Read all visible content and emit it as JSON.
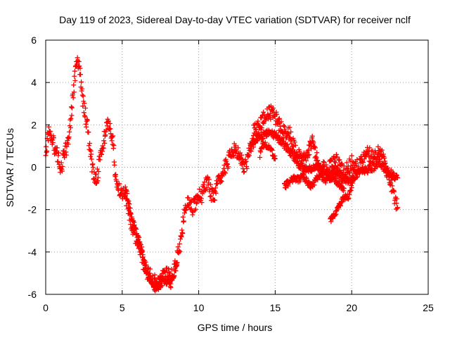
{
  "chart_data": {
    "type": "scatter",
    "title": "Day 119 of 2023, Sidereal Day-to-day VTEC variation (SDTVAR) for receiver nclf",
    "xlabel": "GPS time / hours",
    "ylabel": "SDTVAR / TECUs",
    "xlim": [
      0,
      25
    ],
    "ylim": [
      -6,
      6
    ],
    "xticks": [
      0,
      5,
      10,
      15,
      20,
      25
    ],
    "yticks": [
      -6,
      -4,
      -2,
      0,
      2,
      4,
      6
    ],
    "grid": true,
    "marker": "+",
    "series": [
      {
        "name": "SDTVAR",
        "color": "#ff0000",
        "tracks": [
          {
            "spread": 0.35,
            "points": [
              [
                0.0,
                0.8
              ],
              [
                0.2,
                1.6
              ],
              [
                0.4,
                1.5
              ],
              [
                0.6,
                0.8
              ],
              [
                0.8,
                0.5
              ],
              [
                1.0,
                -0.1
              ],
              [
                1.2,
                0.6
              ],
              [
                1.4,
                1.0
              ],
              [
                1.6,
                2.0
              ],
              [
                1.8,
                3.5
              ],
              [
                2.0,
                4.9
              ],
              [
                2.2,
                4.7
              ],
              [
                2.4,
                3.3
              ],
              [
                2.6,
                2.5
              ],
              [
                2.8,
                1.5
              ],
              [
                3.0,
                0.2
              ],
              [
                3.2,
                -0.6
              ],
              [
                3.4,
                -0.3
              ],
              [
                3.6,
                0.7
              ],
              [
                3.8,
                1.3
              ],
              [
                4.0,
                1.9
              ],
              [
                4.2,
                2.0
              ],
              [
                4.4,
                1.2
              ],
              [
                4.6,
                -0.8
              ],
              [
                4.8,
                -1.0
              ],
              [
                5.0,
                -1.2
              ],
              [
                5.2,
                -1.3
              ],
              [
                5.4,
                -2.1
              ],
              [
                5.6,
                -2.7
              ],
              [
                5.8,
                -3.1
              ],
              [
                6.0,
                -3.5
              ],
              [
                6.2,
                -3.9
              ],
              [
                6.4,
                -4.6
              ],
              [
                6.6,
                -4.9
              ],
              [
                6.8,
                -5.1
              ],
              [
                7.0,
                -5.3
              ],
              [
                7.2,
                -5.5
              ],
              [
                7.4,
                -5.4
              ],
              [
                7.6,
                -5.2
              ],
              [
                7.8,
                -5.0
              ],
              [
                8.0,
                -5.1
              ],
              [
                8.2,
                -5.2
              ],
              [
                8.4,
                -4.8
              ],
              [
                8.6,
                -4.2
              ],
              [
                8.8,
                -3.6
              ],
              [
                9.0,
                -2.5
              ],
              [
                9.2,
                -1.7
              ],
              [
                9.4,
                -1.8
              ],
              [
                9.6,
                -1.9
              ],
              [
                9.8,
                -1.7
              ],
              [
                10.0,
                -1.3
              ],
              [
                10.2,
                -1.4
              ],
              [
                10.4,
                -0.8
              ],
              [
                10.6,
                -0.6
              ],
              [
                10.8,
                -1.2
              ],
              [
                11.0,
                -1.5
              ],
              [
                11.2,
                -0.9
              ],
              [
                11.4,
                -0.5
              ],
              [
                11.6,
                -0.2
              ],
              [
                11.8,
                0.1
              ],
              [
                12.0,
                0.4
              ],
              [
                12.2,
                0.8
              ],
              [
                12.4,
                1.0
              ],
              [
                12.6,
                0.6
              ],
              [
                12.8,
                0.3
              ],
              [
                13.0,
                0.0
              ],
              [
                13.2,
                0.3
              ],
              [
                13.4,
                1.0
              ],
              [
                13.6,
                1.7
              ],
              [
                13.8,
                1.8
              ],
              [
                14.0,
                2.0
              ],
              [
                14.2,
                2.3
              ],
              [
                14.4,
                2.5
              ],
              [
                14.6,
                2.5
              ],
              [
                14.8,
                2.6
              ],
              [
                15.0,
                2.4
              ],
              [
                15.2,
                2.1
              ],
              [
                15.4,
                1.9
              ],
              [
                15.6,
                1.6
              ],
              [
                15.8,
                1.7
              ],
              [
                16.0,
                1.5
              ],
              [
                16.2,
                1.0
              ],
              [
                16.4,
                0.6
              ],
              [
                16.6,
                0.5
              ],
              [
                16.8,
                0.4
              ],
              [
                17.0,
                0.6
              ],
              [
                17.2,
                0.9
              ],
              [
                17.4,
                1.2
              ],
              [
                17.6,
                0.7
              ],
              [
                17.8,
                0.2
              ],
              [
                18.0,
                -0.1
              ],
              [
                18.2,
                0.0
              ],
              [
                18.4,
                -0.1
              ],
              [
                18.6,
                0.0
              ],
              [
                18.8,
                0.2
              ],
              [
                19.0,
                0.3
              ],
              [
                19.2,
                0.1
              ],
              [
                19.4,
                -0.2
              ],
              [
                19.6,
                -0.2
              ],
              [
                19.8,
                0.0
              ],
              [
                20.0,
                0.2
              ],
              [
                20.2,
                0.1
              ],
              [
                20.4,
                0.0
              ],
              [
                20.6,
                0.2
              ],
              [
                20.8,
                0.4
              ],
              [
                21.0,
                0.6
              ],
              [
                21.2,
                0.6
              ],
              [
                21.4,
                0.5
              ],
              [
                21.6,
                0.6
              ],
              [
                21.8,
                0.7
              ],
              [
                22.0,
                0.8
              ],
              [
                22.2,
                0.1
              ],
              [
                22.4,
                -0.4
              ],
              [
                22.6,
                -0.8
              ],
              [
                22.8,
                -1.5
              ],
              [
                23.0,
                -1.9
              ]
            ]
          },
          {
            "spread": 0.18,
            "points": [
              [
                13.4,
                0.9
              ],
              [
                13.8,
                1.4
              ],
              [
                14.2,
                1.5
              ],
              [
                14.6,
                1.7
              ],
              [
                15.0,
                1.5
              ],
              [
                15.4,
                1.2
              ],
              [
                15.8,
                0.9
              ],
              [
                16.2,
                0.5
              ],
              [
                16.6,
                0.1
              ],
              [
                17.0,
                -0.1
              ],
              [
                17.4,
                -0.1
              ],
              [
                17.8,
                0.0
              ],
              [
                18.2,
                -0.2
              ],
              [
                18.6,
                -0.3
              ],
              [
                19.0,
                -0.2
              ],
              [
                19.4,
                -0.5
              ],
              [
                19.8,
                -0.7
              ],
              [
                20.2,
                -0.4
              ],
              [
                20.6,
                -0.2
              ],
              [
                21.0,
                -0.1
              ],
              [
                21.4,
                0.0
              ],
              [
                21.8,
                0.2
              ],
              [
                22.2,
                -0.1
              ],
              [
                22.6,
                -0.3
              ],
              [
                23.0,
                -0.5
              ]
            ]
          },
          {
            "spread": 0.15,
            "points": [
              [
                14.0,
                0.6
              ],
              [
                14.2,
                1.1
              ],
              [
                14.5,
                1.0
              ],
              [
                14.8,
                0.7
              ],
              [
                15.0,
                0.4
              ]
            ]
          },
          {
            "spread": 0.15,
            "points": [
              [
                15.6,
                -0.9
              ],
              [
                15.9,
                -0.7
              ],
              [
                16.2,
                -0.5
              ],
              [
                16.5,
                -0.6
              ],
              [
                16.8,
                -0.4
              ],
              [
                17.1,
                -0.7
              ],
              [
                17.4,
                -0.9
              ],
              [
                17.7,
                -0.5
              ],
              [
                18.0,
                -0.4
              ],
              [
                18.3,
                -0.6
              ],
              [
                18.6,
                -0.5
              ],
              [
                18.9,
                -0.6
              ],
              [
                19.2,
                -0.8
              ],
              [
                19.5,
                -1.0
              ]
            ]
          },
          {
            "spread": 0.12,
            "points": [
              [
                18.6,
                -2.5
              ],
              [
                18.9,
                -2.2
              ],
              [
                19.2,
                -1.8
              ],
              [
                19.5,
                -1.4
              ],
              [
                19.8,
                -1.4
              ],
              [
                20.1,
                -0.6
              ]
            ]
          },
          {
            "spread": 0.2,
            "points": [
              [
                5.2,
                -1.0
              ],
              [
                5.4,
                -1.6
              ],
              [
                5.6,
                -2.4
              ],
              [
                5.8,
                -2.8
              ],
              [
                6.0,
                -3.3
              ],
              [
                6.2,
                -3.7
              ],
              [
                6.4,
                -4.4
              ],
              [
                6.6,
                -4.8
              ],
              [
                6.8,
                -5.3
              ],
              [
                7.0,
                -5.5
              ],
              [
                7.2,
                -5.7
              ],
              [
                7.4,
                -5.6
              ],
              [
                7.6,
                -5.4
              ],
              [
                7.8,
                -5.3
              ],
              [
                8.0,
                -5.4
              ],
              [
                8.2,
                -5.5
              ],
              [
                8.4,
                -5.0
              ],
              [
                8.6,
                -4.5
              ]
            ]
          }
        ]
      }
    ]
  }
}
